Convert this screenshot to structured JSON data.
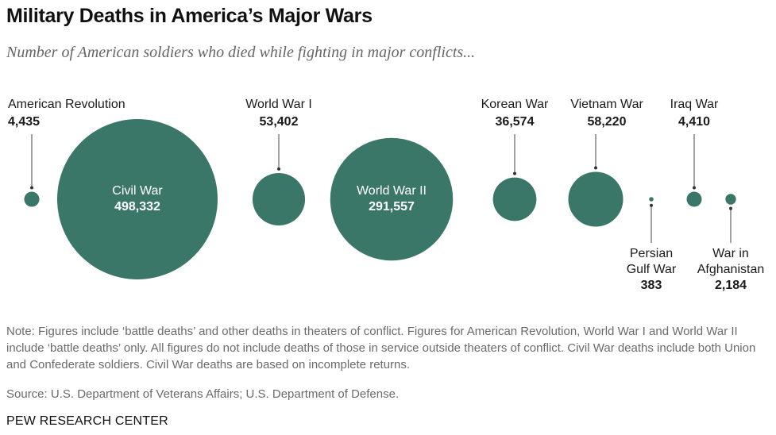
{
  "header": {
    "title": "Military Deaths in America’s Major Wars",
    "subtitle": "Number of American soldiers who died while fighting in major conflicts..."
  },
  "chart_data": {
    "type": "bubble",
    "title": "Military Deaths in America’s Major Wars",
    "subtitle": "Number of American soldiers who died while fighting in major conflicts...",
    "color": "#3b7768",
    "categories": [
      "American Revolution",
      "Civil War",
      "World War I",
      "World War II",
      "Korean War",
      "Vietnam War",
      "Persian Gulf War",
      "Iraq War",
      "War in Afghanistan"
    ],
    "values": [
      4435,
      498332,
      53402,
      291557,
      36574,
      58220,
      383,
      4410,
      2184
    ],
    "value_labels": [
      "4,435",
      "498,332",
      "53,402",
      "291,557",
      "36,574",
      "58,220",
      "383",
      "4,410",
      "2,184"
    ],
    "label_lines": [
      [
        "American Revolution"
      ],
      [
        "Civil War"
      ],
      [
        "World War I"
      ],
      [
        "World War II"
      ],
      [
        "Korean War"
      ],
      [
        "Vietnam War"
      ],
      [
        "Persian",
        "Gulf War"
      ],
      [
        "Iraq War"
      ],
      [
        "War in",
        "Afghanistan"
      ]
    ],
    "label_positions": [
      "above",
      "inside",
      "above",
      "inside",
      "above",
      "above",
      "below",
      "above",
      "below"
    ]
  },
  "footer": {
    "note": "Note: Figures include ‘battle deaths’ and other deaths in theaters of conflict. Figures for American Revolution, World War I and World War II include ‘battle deaths’ only. All figures do not include deaths of those in service outside theaters of conflict. Civil War deaths include both Union and Confederate soldiers. Civil War deaths are based on incomplete returns.",
    "source": "Source: U.S. Department of Veterans Affairs; U.S. Department of Defense.",
    "org": "PEW RESEARCH CENTER"
  }
}
